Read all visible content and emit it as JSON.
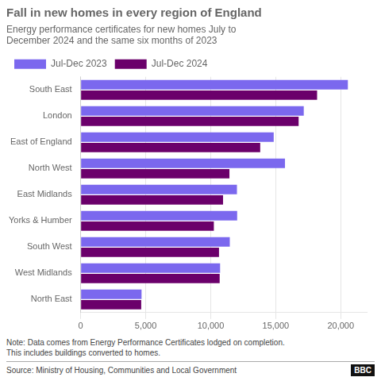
{
  "chart_data": {
    "type": "bar",
    "orientation": "horizontal",
    "title": "Fall in new homes in every region of England",
    "subtitle": "Energy performance certificates for new homes July to\nDecember 2024 and the same six months of 2023",
    "categories": [
      "South East",
      "London",
      "East of England",
      "North West",
      "East Midlands",
      "Yorks & Humber",
      "South West",
      "West Midlands",
      "North East"
    ],
    "series": [
      {
        "name": "Jul-Dec 2023",
        "color": "#7B68EE",
        "values": [
          20551,
          17158,
          14846,
          15713,
          12018,
          12034,
          11468,
          10722,
          4680
        ]
      },
      {
        "name": "Jul-Dec 2024",
        "color": "#6B006B",
        "values": [
          18183,
          16763,
          13807,
          11440,
          10950,
          10241,
          10638,
          10689,
          4655
        ]
      }
    ],
    "xlim": [
      0,
      22000
    ],
    "xticks": [
      0,
      {
        "value": 5000,
        "label": "5,000"
      },
      {
        "value": 10000,
        "label": "10,000"
      },
      {
        "value": 15000,
        "label": "15,000"
      },
      {
        "value": 20000,
        "label": "20,000"
      }
    ],
    "grid": true,
    "legend": "top",
    "annotations": [
      "Note: Data comes from Energy Performance Certificates lodged on completion.\nThis includes buildings converted to homes.",
      "Source: Ministry of Housing, Communities and Local Government",
      "BBC"
    ]
  }
}
